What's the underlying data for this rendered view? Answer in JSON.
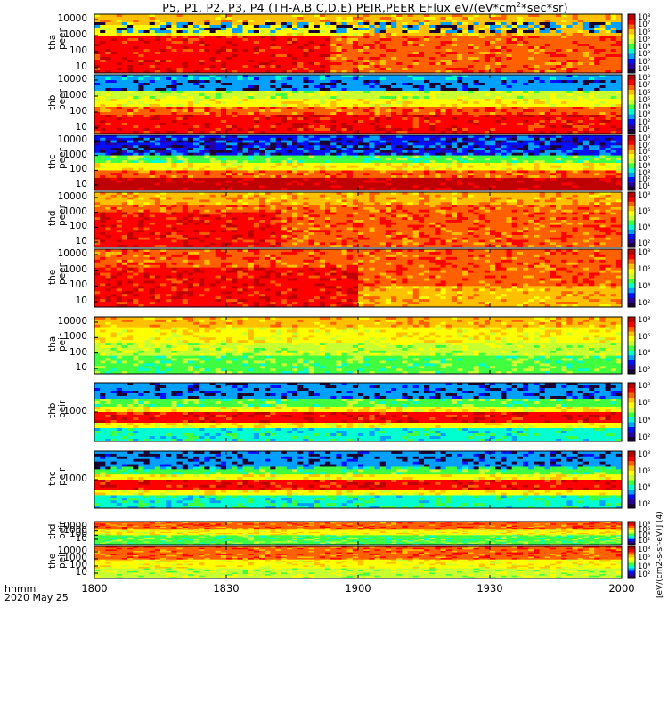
{
  "title": "P5, P1, P2, P3, P4 (TH-A,B,C,D,E) PEIR,PEER EFlux eV/(eV*cm",
  "title_sup": "2",
  "title_tail": "*sec*sr)",
  "xaxis": {
    "ticks": [
      "1800",
      "1830",
      "1900",
      "1930",
      "2000"
    ],
    "label_line1": "hhmm",
    "label_line2": "2020 May 25"
  },
  "colorbar_unit": "[eV/(cm2-s-sr-eV)] (4)",
  "colorscale": [
    "#1a0033",
    "#2a00a0",
    "#0010ff",
    "#00a0ff",
    "#00ffd0",
    "#40ff40",
    "#c8ff30",
    "#ffff00",
    "#ffc000",
    "#ff6000",
    "#ff0000",
    "#c00000"
  ],
  "chart_data": {
    "type": "heatmap",
    "quantity": "EFlux eV/(eV*cm2*sec*sr)",
    "x_range": [
      "1800",
      "2000"
    ],
    "yscale": "log",
    "panels": [
      {
        "probe": "tha",
        "species": "peer",
        "label_line1": "tha",
        "label_line2": "peer",
        "yticks": [
          "10000",
          "1000",
          "100",
          "10"
        ],
        "cbar_ticks": [
          "10⁸",
          "10⁷",
          "10⁶",
          "10⁵",
          "10⁴",
          "10³",
          "10²",
          "10¹"
        ],
        "gap_above": false,
        "noise_band": [
          0.12,
          0.3
        ]
      },
      {
        "probe": "thb",
        "species": "peer",
        "label_line1": "thb",
        "label_line2": "peer",
        "yticks": [
          "10000",
          "1000",
          "100",
          "10"
        ],
        "cbar_ticks": [
          "10⁸",
          "10⁷",
          "10⁶",
          "10⁵",
          "10⁴",
          "10³",
          "10²",
          "10¹"
        ],
        "gap_above": true,
        "noise_band": [
          0.1,
          0.28
        ]
      },
      {
        "probe": "thc",
        "species": "peer",
        "label_line1": "thc",
        "label_line2": "peer",
        "yticks": [
          "10000",
          "1000",
          "100",
          "10"
        ],
        "cbar_ticks": [
          "10⁸",
          "10⁷",
          "10⁶",
          "10⁵",
          "10⁴",
          "10³",
          "10²",
          "10¹"
        ],
        "gap_above": true,
        "noise_band": [
          0.05,
          0.35
        ]
      },
      {
        "probe": "thd",
        "species": "peer",
        "label_line1": "thd",
        "label_line2": "peer",
        "yticks": [
          "10000",
          "1000",
          "100",
          "10"
        ],
        "cbar_ticks": [
          "10⁸",
          "10⁶",
          "10⁴",
          "10²"
        ],
        "gap_above": false,
        "noise_band": null
      },
      {
        "probe": "the",
        "species": "peer",
        "label_line1": "the",
        "label_line2": "peer",
        "yticks": [
          "10000",
          "1000",
          "100",
          "10"
        ],
        "cbar_ticks": [
          "10⁸",
          "10⁶",
          "10⁴",
          "10²"
        ],
        "gap_above": false,
        "noise_band": null
      },
      {
        "probe": "tha",
        "species": "peir",
        "label_line1": "tha",
        "label_line2": "peir",
        "yticks": [
          "10000",
          "1000",
          "100",
          "10"
        ],
        "cbar_ticks": [
          "10⁸",
          "10⁶",
          "10⁴",
          "10²"
        ],
        "gap_above": true,
        "noise_band": null
      },
      {
        "probe": "thb",
        "species": "peir",
        "label_line1": "thb",
        "label_line2": "peir",
        "yticks": [
          "1000"
        ],
        "cbar_ticks": [
          "10⁸",
          "10⁶",
          "10⁴",
          "10²"
        ],
        "gap_above": true,
        "noise_band": [
          0.02,
          0.25
        ]
      },
      {
        "probe": "thc",
        "species": "peir",
        "label_line1": "thc",
        "label_line2": "peir",
        "yticks": [
          "1000"
        ],
        "cbar_ticks": [
          "10⁸",
          "10⁶",
          "10⁴",
          "10²"
        ],
        "gap_above": false,
        "noise_band": [
          0.02,
          0.3
        ]
      },
      {
        "probe": "thd",
        "species": "peir",
        "label_line1": "thd",
        "label_line2": "peir",
        "yticks": [
          "10000",
          "1000",
          "100",
          "10"
        ],
        "cbar_ticks": [
          "10⁸",
          "10⁶",
          "10⁴",
          "10²"
        ],
        "gap_above": true,
        "noise_band": null
      },
      {
        "probe": "the",
        "species": "peir",
        "label_line1": "the",
        "label_line2": "peir",
        "yticks": [
          "10000",
          "1000",
          "100",
          "10"
        ],
        "cbar_ticks": [
          "10⁸",
          "10⁶",
          "10⁴",
          "10²"
        ],
        "gap_above": true,
        "noise_band": null
      }
    ]
  }
}
